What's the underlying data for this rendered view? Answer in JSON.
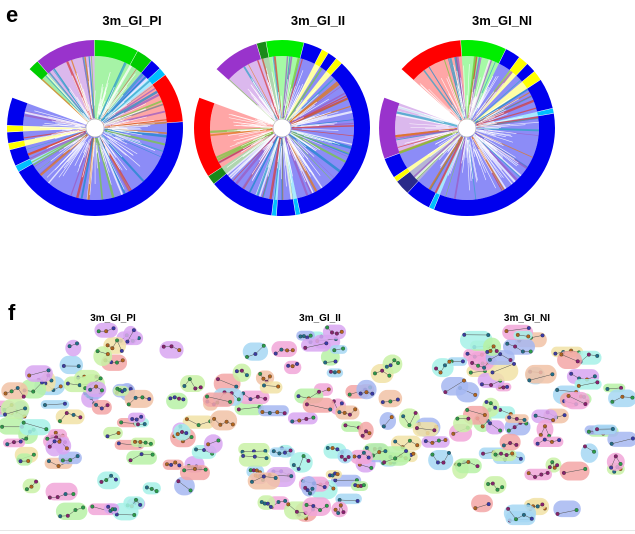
{
  "panel_e": {
    "letter": "e",
    "trees": [
      {
        "title": "3m_GI_PI",
        "ring": [
          {
            "f": 0.02,
            "c": "#00cc00"
          },
          {
            "f": 0.11,
            "c": "#9933cc"
          },
          {
            "f": 0.08,
            "c": "#00dd00"
          },
          {
            "f": 0.03,
            "c": "#00cc00"
          },
          {
            "f": 0.02,
            "c": "#0000ee"
          },
          {
            "f": 0.015,
            "c": "#00bfff"
          },
          {
            "f": 0.09,
            "c": "#ff0000"
          },
          {
            "f": 0.42,
            "c": "#0000ee"
          },
          {
            "f": 0.012,
            "c": "#00bfff"
          },
          {
            "f": 0.03,
            "c": "#0000ee"
          },
          {
            "f": 0.012,
            "c": "#ffff00"
          },
          {
            "f": 0.02,
            "c": "#0000ee"
          },
          {
            "f": 0.012,
            "c": "#ffff00"
          },
          {
            "f": 0.05,
            "c": "#0000ee"
          }
        ]
      },
      {
        "title": "3m_GI_II",
        "ring": [
          {
            "f": 0.1,
            "c": "#9933cc"
          },
          {
            "f": 0.02,
            "c": "#1a8a1a"
          },
          {
            "f": 0.08,
            "c": "#00ee00"
          },
          {
            "f": 0.04,
            "c": "#0000ee"
          },
          {
            "f": 0.015,
            "c": "#ffff00"
          },
          {
            "f": 0.02,
            "c": "#0000ee"
          },
          {
            "f": 0.015,
            "c": "#ffff00"
          },
          {
            "f": 0.4,
            "c": "#0000ee"
          },
          {
            "f": 0.01,
            "c": "#00bfff"
          },
          {
            "f": 0.04,
            "c": "#0000ee"
          },
          {
            "f": 0.01,
            "c": "#00bfff"
          },
          {
            "f": 0.14,
            "c": "#0000ee"
          },
          {
            "f": 0.02,
            "c": "#1a8a1a"
          },
          {
            "f": 0.17,
            "c": "#ff0000"
          }
        ]
      },
      {
        "title": "3m_GI_NI",
        "ring": [
          {
            "f": 0.13,
            "c": "#ff0000"
          },
          {
            "f": 0.09,
            "c": "#00ee00"
          },
          {
            "f": 0.03,
            "c": "#0000ee"
          },
          {
            "f": 0.02,
            "c": "#ffff00"
          },
          {
            "f": 0.02,
            "c": "#0000ee"
          },
          {
            "f": 0.02,
            "c": "#ffff00"
          },
          {
            "f": 0.06,
            "c": "#0000ee"
          },
          {
            "f": 0.01,
            "c": "#00bfff"
          },
          {
            "f": 0.36,
            "c": "#0000ee"
          },
          {
            "f": 0.01,
            "c": "#00bfff"
          },
          {
            "f": 0.05,
            "c": "#0000ee"
          },
          {
            "f": 0.03,
            "c": "#2a2a8a"
          },
          {
            "f": 0.01,
            "c": "#ffff00"
          },
          {
            "f": 0.04,
            "c": "#0000ee"
          },
          {
            "f": 0.12,
            "c": "#9933cc"
          }
        ]
      }
    ]
  },
  "panel_f": {
    "letter": "f",
    "networks": [
      {
        "title": "3m_GI_PI"
      },
      {
        "title": "3m_GI_II"
      },
      {
        "title": "3m_GI_NI"
      }
    ]
  },
  "colors": {
    "blue": "#0000ee",
    "red": "#ff0000",
    "green": "#00dd00",
    "purple": "#9933cc",
    "yellow": "#ffff00",
    "cyan": "#00bfff",
    "wedge_teal": "#1f5f7a",
    "module_palette": [
      "#f4a6a6",
      "#d9a6f2",
      "#a6d8f4",
      "#b8f2a6",
      "#f2e2a6",
      "#a6b8f2",
      "#f2a6d9",
      "#a6f2e8",
      "#c9f2a6",
      "#f2c3a6"
    ],
    "node_palette": [
      "#1f6f8b",
      "#2a9d4a",
      "#b5651d",
      "#3a3aa8",
      "#8b1f6f"
    ]
  }
}
